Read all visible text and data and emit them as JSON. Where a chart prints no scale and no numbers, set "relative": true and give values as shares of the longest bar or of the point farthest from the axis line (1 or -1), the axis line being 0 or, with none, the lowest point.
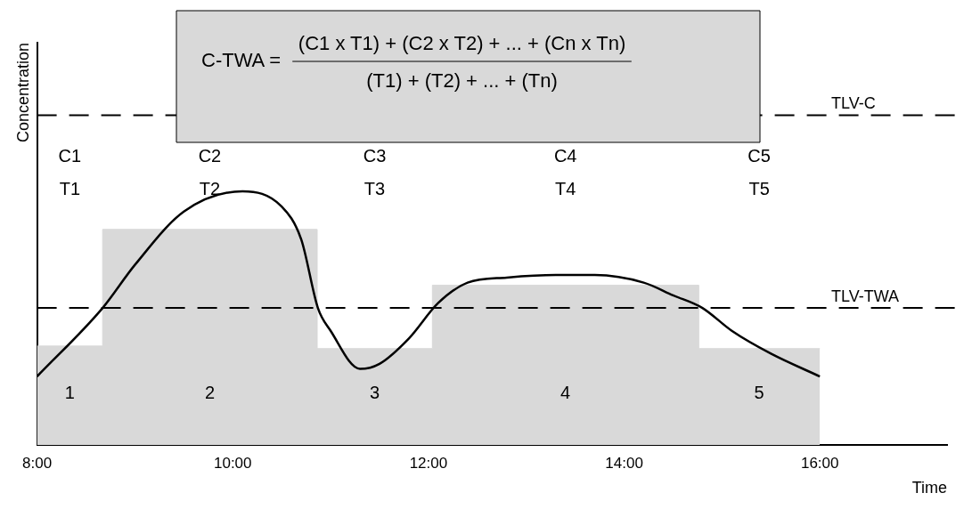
{
  "chart_data": {
    "type": "line",
    "relative": true,
    "xlabel": "Time",
    "ylabel": "Concentration",
    "legend": false,
    "grid": false,
    "xlim": [
      8,
      17.3
    ],
    "xticks": [
      {
        "value": 8,
        "label": "8:00"
      },
      {
        "value": 10,
        "label": "10:00"
      },
      {
        "value": 12,
        "label": "12:00"
      },
      {
        "value": 14,
        "label": "14:00"
      },
      {
        "value": 16,
        "label": "16:00"
      }
    ],
    "series": [
      {
        "type": "area",
        "color": "#d9d9d9",
        "x": [
          8,
          8.67,
          8.67,
          10.86,
          10.86,
          12.04,
          12.04,
          14.76,
          14.76,
          16
        ],
        "values": [
          0.39,
          0.39,
          0.85,
          0.85,
          0.38,
          0.38,
          0.63,
          0.63,
          0.38,
          0.38
        ]
      },
      {
        "type": "line",
        "color": "#000000",
        "x": [
          8,
          8.67,
          9,
          9.5,
          10.1,
          10.5,
          10.7,
          10.87,
          11,
          11.3,
          11.5,
          11.8,
          12.1,
          12.4,
          12.8,
          13.3,
          13.7,
          14.2,
          14.5,
          14.8,
          15.1,
          15.5,
          16
        ],
        "values": [
          0.27,
          0.54,
          0.71,
          0.92,
          1,
          0.94,
          0.81,
          0.54,
          0.45,
          0.3,
          0.32,
          0.42,
          0.56,
          0.64,
          0.66,
          0.67,
          0.67,
          0.64,
          0.59,
          0.54,
          0.45,
          0.36,
          0.27
        ]
      }
    ],
    "ref_lines": [
      {
        "axis": "y",
        "value": 1.3,
        "label": "TLV-C",
        "line_style": "dashed"
      },
      {
        "axis": "y",
        "value": 0.54,
        "label": "TLV-TWA",
        "line_style": "dashed"
      }
    ],
    "annotations": [
      "C-TWA =",
      "(C1 x T1) + (C2 x T2) + ... + (Cn x Tn)",
      "(T1) + (T2) + ... + (Tn)",
      "C1",
      "T1",
      "C2",
      "T2",
      "C3",
      "T3",
      "C4",
      "T4",
      "C5",
      "T5",
      "1",
      "2",
      "3",
      "4",
      "5"
    ]
  }
}
